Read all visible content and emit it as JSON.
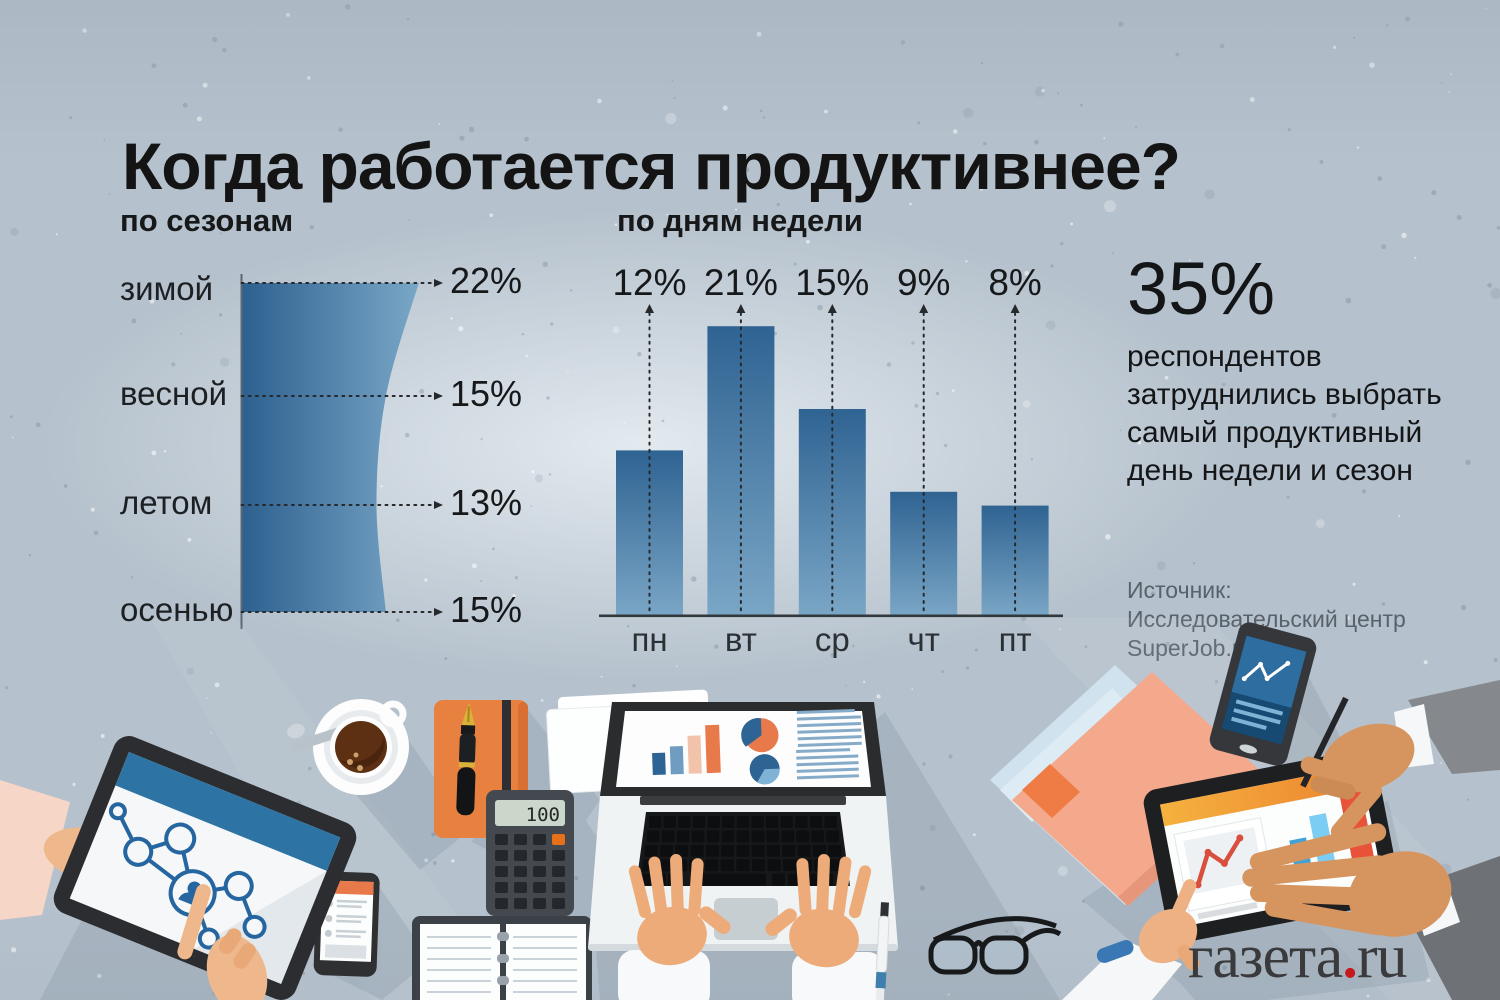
{
  "title": "Когда работается продуктивнее?",
  "callout": {
    "stat": "35%",
    "text": "респондентов затруднились выбрать самый продуктивный день недели и сезон"
  },
  "source_text": "Источник: Исследовательский центр SuperJob.ru",
  "logo": {
    "word": "газета",
    "dot": ".",
    "tld": "ru"
  },
  "illustration": {
    "calculator_display": "100",
    "icons": [
      "tablet-network-icon",
      "smartphone-list-icon",
      "coffee-cup-icon",
      "business-cards-icon",
      "orange-notebook-icon",
      "fountain-pen-icon",
      "calculator-icon",
      "open-notebook-icon",
      "laptop-charts-icon",
      "typing-hands-icon",
      "ballpoint-pen-icon",
      "glasses-icon",
      "folders-icon",
      "smartphone-chart-icon",
      "tablet-dashboard-icon",
      "pen-hand-icon",
      "pointing-hand-icon"
    ]
  },
  "colors": {
    "background": "#b5c1cc",
    "chart_blue_dark": "#2e6190",
    "chart_blue_light": "#79a7c7",
    "accent_orange": "#e8794a",
    "dotted_line": "#26292c",
    "logo_dot_red": "#c41a1e"
  },
  "chart_data": [
    {
      "type": "area",
      "title": "по сезонам",
      "orientation": "horizontal-funnel",
      "categories": [
        "зимой",
        "весной",
        "летом",
        "осенью"
      ],
      "values": [
        22,
        15,
        13,
        15
      ],
      "value_labels": [
        "22%",
        "15%",
        "13%",
        "15%"
      ],
      "unit": "%",
      "xlabel": "",
      "ylabel": "",
      "grid": false,
      "legend": false
    },
    {
      "type": "bar",
      "title": "по дням недели",
      "categories": [
        "пн",
        "вт",
        "ср",
        "чт",
        "пт"
      ],
      "values": [
        12,
        21,
        15,
        9,
        8
      ],
      "value_labels": [
        "12%",
        "21%",
        "15%",
        "9%",
        "8%"
      ],
      "unit": "%",
      "ylim": [
        0,
        22
      ],
      "xlabel": "",
      "ylabel": "",
      "grid": false,
      "legend": false
    }
  ]
}
